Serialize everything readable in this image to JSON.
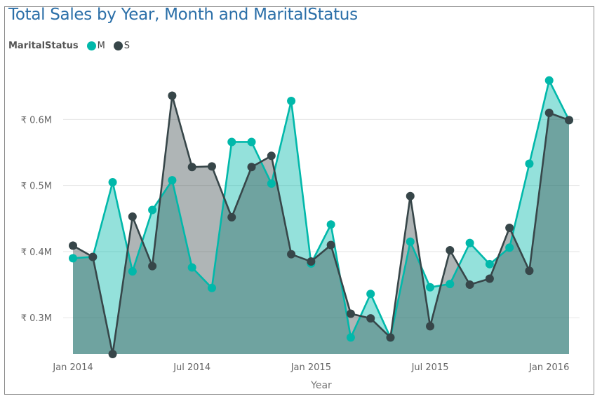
{
  "chart_data": {
    "type": "area",
    "title": "Total Sales by Year, Month and MaritalStatus",
    "legend_title": "MaritalStatus",
    "xlabel": "Year",
    "ylabel": "",
    "ylim": [
      0.245,
      0.68
    ],
    "y_ticks": [
      {
        "value": 0.3,
        "label": "₹ 0.3M"
      },
      {
        "value": 0.4,
        "label": "₹ 0.4M"
      },
      {
        "value": 0.5,
        "label": "₹ 0.5M"
      },
      {
        "value": 0.6,
        "label": "₹ 0.6M"
      }
    ],
    "x_ticks": [
      {
        "index": 0,
        "label": "Jan 2014"
      },
      {
        "index": 6,
        "label": "Jul 2014"
      },
      {
        "index": 12,
        "label": "Jan 2015"
      },
      {
        "index": 18,
        "label": "Jul 2015"
      },
      {
        "index": 24,
        "label": "Jan 2016"
      }
    ],
    "categories": [
      "Jan 2014",
      "Feb 2014",
      "Mar 2014",
      "Apr 2014",
      "May 2014",
      "Jun 2014",
      "Jul 2014",
      "Aug 2014",
      "Sep 2014",
      "Oct 2014",
      "Nov 2014",
      "Dec 2014",
      "Jan 2015",
      "Feb 2015",
      "Mar 2015",
      "Apr 2015",
      "May 2015",
      "Jun 2015",
      "Jul 2015",
      "Aug 2015",
      "Sep 2015",
      "Oct 2015",
      "Nov 2015",
      "Dec 2015",
      "Jan 2016",
      "Feb 2016"
    ],
    "series": [
      {
        "name": "M",
        "color": "#01b8aa",
        "values": [
          0.39,
          0.392,
          0.505,
          0.37,
          0.463,
          0.508,
          0.376,
          0.345,
          0.566,
          0.566,
          0.503,
          0.628,
          0.382,
          0.441,
          0.27,
          0.336,
          0.27,
          0.415,
          0.346,
          0.351,
          0.413,
          0.381,
          0.406,
          0.533,
          0.659,
          0.599
        ]
      },
      {
        "name": "S",
        "color": "#374649",
        "values": [
          0.409,
          0.392,
          0.245,
          0.453,
          0.378,
          0.636,
          0.528,
          0.529,
          0.452,
          0.528,
          0.545,
          0.396,
          0.385,
          0.41,
          0.306,
          0.299,
          0.27,
          0.484,
          0.287,
          0.402,
          0.35,
          0.359,
          0.436,
          0.371,
          0.61,
          0.599
        ]
      }
    ],
    "grid": true,
    "legend_position": "top-left"
  }
}
